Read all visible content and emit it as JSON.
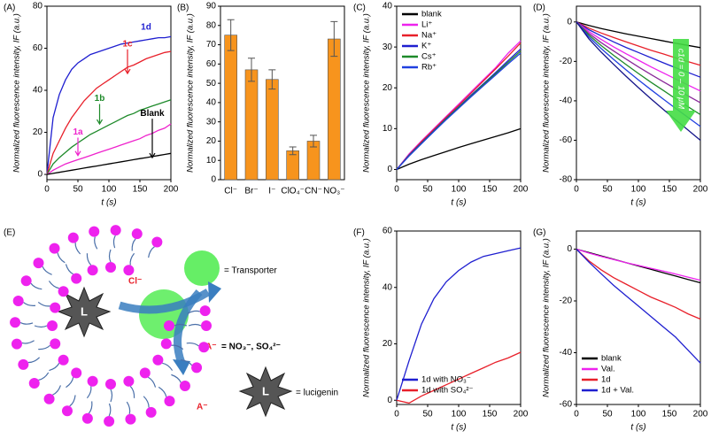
{
  "chart_data": [
    {
      "type": "line",
      "label": "(A)",
      "xlabel": "t (s)",
      "ylabel": "Normalized fluorescence intensity, IF (a.u.)",
      "xlim": [
        0,
        200
      ],
      "xticks": [
        0,
        50,
        100,
        150,
        200
      ],
      "ylim": [
        -2.5,
        80
      ],
      "yticks": [
        0,
        20,
        40,
        60,
        80
      ],
      "x": [
        0,
        10,
        20,
        30,
        40,
        50,
        60,
        70,
        80,
        90,
        100,
        110,
        120,
        130,
        140,
        150,
        160,
        170,
        180,
        190,
        200
      ],
      "series": [
        {
          "name": "1d",
          "color": "#1f1fd0",
          "values": [
            0,
            27,
            38,
            45,
            50,
            53,
            55,
            57,
            58,
            59,
            60,
            61,
            62,
            62.5,
            63,
            63.5,
            64,
            64.5,
            65,
            65,
            65.5
          ]
        },
        {
          "name": "1c",
          "color": "#e8202a",
          "values": [
            0,
            10,
            16,
            22,
            27,
            31,
            35,
            38,
            41,
            43,
            45,
            47,
            49,
            51,
            52,
            53.5,
            55,
            56,
            57,
            58,
            58.5
          ]
        },
        {
          "name": "1b",
          "color": "#1e8a2a",
          "values": [
            0,
            5,
            8,
            10.5,
            13,
            15,
            17,
            19,
            20.5,
            22,
            23.5,
            25,
            26.5,
            28,
            29,
            30.5,
            31.5,
            32.5,
            33.5,
            34.5,
            35.5
          ]
        },
        {
          "name": "1a",
          "color": "#ee22cc",
          "values": [
            0,
            2,
            3.5,
            5,
            6,
            7,
            8,
            9,
            10,
            11,
            12,
            13,
            14,
            15,
            16,
            17,
            18.5,
            19.5,
            21,
            22,
            24
          ]
        },
        {
          "name": "Blank",
          "color": "#000000",
          "values": [
            0,
            0.5,
            1,
            1.5,
            2,
            2.5,
            3,
            3.5,
            4,
            4.5,
            5,
            5.5,
            6,
            6.5,
            7,
            7.5,
            8,
            8.5,
            9,
            9.5,
            10
          ]
        }
      ]
    },
    {
      "type": "bar",
      "label": "(B)",
      "ylabel": "Normalized fluorescence intensity, IF (a.u.)",
      "color": "#f7941d",
      "ylim": [
        0,
        90
      ],
      "yticks": [
        0,
        10,
        20,
        30,
        40,
        50,
        60,
        70,
        80,
        90
      ],
      "categories": [
        "Cl⁻",
        "Br⁻",
        "I⁻",
        "ClO₄⁻",
        "CN⁻",
        "NO₃⁻"
      ],
      "values": [
        75,
        57,
        52,
        15,
        20,
        73
      ],
      "errors": [
        8,
        6,
        5,
        2,
        3,
        9
      ]
    },
    {
      "type": "line",
      "label": "(C)",
      "xlabel": "t (s)",
      "ylabel": "Normalized fluorescence intensity, IF (a.u.)",
      "xlim": [
        0,
        200
      ],
      "xticks": [
        0,
        50,
        100,
        150,
        200
      ],
      "ylim": [
        -2.5,
        40
      ],
      "yticks": [
        0,
        10,
        20,
        30,
        40
      ],
      "legend": "upper left",
      "x": [
        0,
        20,
        40,
        60,
        80,
        100,
        120,
        140,
        160,
        180,
        200
      ],
      "series": [
        {
          "name": "blank",
          "color": "#000000",
          "values": [
            0,
            1.3,
            2.4,
            3.4,
            4.4,
            5.4,
            6.3,
            7.2,
            8.1,
            9,
            10
          ]
        },
        {
          "name": "Li⁺",
          "color": "#ee22ee",
          "values": [
            0,
            3.8,
            7,
            10,
            13,
            16,
            19,
            22,
            25,
            28.5,
            31.5
          ]
        },
        {
          "name": "Na⁺",
          "color": "#e8202a",
          "values": [
            0,
            3.6,
            6.8,
            9.8,
            12.8,
            15.7,
            18.7,
            21.7,
            24.7,
            27.8,
            31
          ]
        },
        {
          "name": "K⁺",
          "color": "#1f1fd0",
          "values": [
            0,
            3.5,
            6.5,
            9.5,
            12.5,
            15.3,
            18.2,
            21,
            23.8,
            26.7,
            29.5
          ]
        },
        {
          "name": "Cs⁺",
          "color": "#1e8a2a",
          "values": [
            0,
            3.4,
            6.4,
            9.4,
            12.4,
            15.2,
            18,
            20.8,
            23.5,
            26.3,
            29
          ]
        },
        {
          "name": "Rb⁺",
          "color": "#2040e0",
          "values": [
            0,
            3.3,
            6.3,
            9.3,
            12.2,
            15,
            17.8,
            20.5,
            23.2,
            25.9,
            28.5
          ]
        }
      ]
    },
    {
      "type": "line",
      "label": "(D)",
      "xlabel": "t (s)",
      "ylabel": "Normalized fluorescence intensity, IF (a.u.)",
      "annotation": "c1d = 0 – 10 μM",
      "xlim": [
        0,
        200
      ],
      "xticks": [
        0,
        50,
        100,
        150,
        200
      ],
      "ylim": [
        -80,
        8
      ],
      "yticks": [
        -80,
        -60,
        -40,
        -20,
        0
      ],
      "x": [
        0,
        20,
        40,
        60,
        80,
        100,
        120,
        140,
        160,
        180,
        200
      ],
      "series": [
        {
          "color": "#000000",
          "values": [
            0,
            -1.8,
            -3.3,
            -4.7,
            -6,
            -7.2,
            -8.4,
            -9.6,
            -10.8,
            -11.9,
            -13
          ]
        },
        {
          "color": "#e8202a",
          "values": [
            0,
            -3.1,
            -5.6,
            -7.9,
            -10.1,
            -12.2,
            -14.3,
            -16.2,
            -18.2,
            -20.1,
            -22
          ]
        },
        {
          "color": "#1f1fd0",
          "values": [
            0,
            -3.9,
            -7.1,
            -10.1,
            -12.9,
            -15.5,
            -18.1,
            -20.7,
            -23.2,
            -25.6,
            -28
          ]
        },
        {
          "color": "#ee22ee",
          "values": [
            0,
            -4.9,
            -8.9,
            -12.6,
            -16.1,
            -19.4,
            -22.7,
            -25.8,
            -28.9,
            -32,
            -35
          ]
        },
        {
          "color": "#8a2a9a",
          "values": [
            0,
            -5.8,
            -10.5,
            -14.7,
            -18.8,
            -22.8,
            -26.6,
            -30.3,
            -33.9,
            -37.5,
            -41
          ]
        },
        {
          "color": "#1e8a2a",
          "values": [
            0,
            -6.6,
            -12,
            -16.9,
            -21.6,
            -26.1,
            -30.5,
            -34.7,
            -38.9,
            -43,
            -47
          ]
        },
        {
          "color": "#2040e0",
          "values": [
            0,
            -7.5,
            -13.5,
            -19,
            -24.3,
            -29.4,
            -34.3,
            -39.1,
            -43.8,
            -48.4,
            -53
          ]
        },
        {
          "color": "#14148a",
          "values": [
            0,
            -8.5,
            -15.3,
            -21.5,
            -27.5,
            -33.3,
            -38.9,
            -44.3,
            -49.6,
            -54.8,
            -60
          ]
        }
      ]
    },
    {
      "type": "line",
      "label": "(F)",
      "xlabel": "t (s)",
      "ylabel": "Normalized fluorescence intensity, IF (a.u.)",
      "xlim": [
        0,
        200
      ],
      "xticks": [
        0,
        50,
        100,
        150,
        200
      ],
      "ylim": [
        -1.5,
        60
      ],
      "yticks": [
        0,
        20,
        40,
        60
      ],
      "legend": "lower left",
      "x": [
        0,
        20,
        40,
        60,
        80,
        100,
        120,
        140,
        160,
        180,
        200
      ],
      "series": [
        {
          "name": "1d with NO₃⁻",
          "color": "#1f1fd0",
          "values": [
            0,
            14,
            27,
            36,
            42,
            46,
            49,
            51,
            52,
            53,
            54
          ]
        },
        {
          "name": "1d with SO₄²⁻",
          "color": "#e8202a",
          "values": [
            0,
            -1,
            1.5,
            3.5,
            5.5,
            7.5,
            9.5,
            11.5,
            13.5,
            15,
            17
          ]
        }
      ]
    },
    {
      "type": "line",
      "label": "(G)",
      "xlabel": "t (s)",
      "ylabel": "Normalized fluorescence intensity, IF (a.u.)",
      "xlim": [
        0,
        200
      ],
      "xticks": [
        0,
        50,
        100,
        150,
        200
      ],
      "ylim": [
        -60,
        7
      ],
      "yticks": [
        -60,
        -40,
        -20,
        0
      ],
      "legend": "lower left",
      "x": [
        0,
        20,
        40,
        60,
        80,
        100,
        120,
        140,
        160,
        180,
        200
      ],
      "series": [
        {
          "name": "blank",
          "color": "#000000",
          "values": [
            0,
            -1.3,
            -2.6,
            -3.9,
            -5.2,
            -6.5,
            -7.8,
            -9.1,
            -10.4,
            -11.7,
            -13
          ]
        },
        {
          "name": "Val.",
          "color": "#ee22ee",
          "values": [
            0,
            -1.5,
            -2.8,
            -4,
            -5.2,
            -6.3,
            -7.4,
            -8.5,
            -9.6,
            -10.8,
            -12
          ]
        },
        {
          "name": "1d",
          "color": "#e8202a",
          "values": [
            0,
            -4.5,
            -8,
            -11,
            -13.5,
            -16,
            -18.5,
            -20.5,
            -22.5,
            -25,
            -27
          ]
        },
        {
          "name": "1d + Val.",
          "color": "#1f1fd0",
          "values": [
            0,
            -5,
            -9.5,
            -14,
            -18,
            -22,
            -26,
            -30,
            -34,
            -39,
            -44
          ]
        }
      ]
    }
  ],
  "diagram": {
    "label": "(E)",
    "transporter": "= Transporter",
    "chloride": "Cl⁻",
    "lucigenin_symbol": "L",
    "anion": "A⁻",
    "anion_definition": "= NO₃⁻, SO₄²⁻",
    "anion_outside": "A⁻",
    "lucigenin_symbol_key": "L",
    "lucigenin": "= lucigenin"
  }
}
